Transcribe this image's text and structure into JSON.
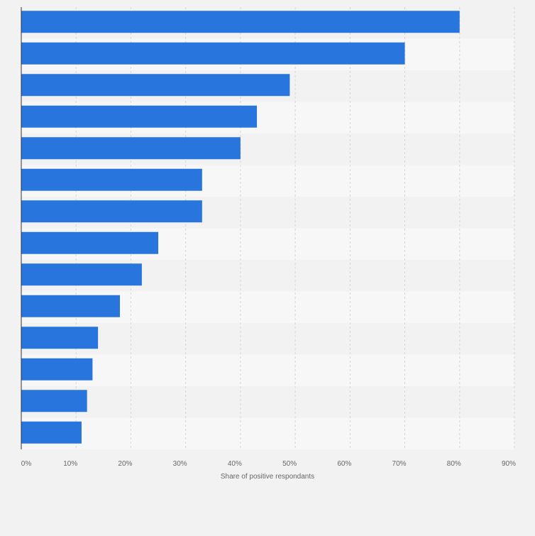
{
  "chart_data": {
    "type": "bar",
    "orientation": "horizontal",
    "categories": [
      "",
      "",
      "",
      "",
      "",
      "",
      "",
      "",
      "",
      "",
      "",
      "",
      "",
      ""
    ],
    "values": [
      80,
      70,
      49,
      43,
      40,
      33,
      33,
      25,
      22,
      18,
      14,
      13,
      12,
      11
    ],
    "xlabel": "Share of positive respondants",
    "ylabel": "",
    "xlim": [
      0,
      90
    ],
    "tick_values": [
      0,
      10,
      20,
      30,
      40,
      50,
      60,
      70,
      80,
      90
    ],
    "tick_labels": [
      "0%",
      "10%",
      "20%",
      "30%",
      "40%",
      "50%",
      "60%",
      "70%",
      "80%",
      "90%"
    ],
    "grid": true,
    "bar_color": "#2876dd",
    "band_colors": [
      "#f2f2f2",
      "#f7f7f7"
    ]
  }
}
